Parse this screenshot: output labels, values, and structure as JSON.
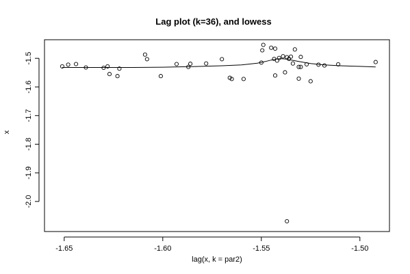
{
  "chart_data": {
    "type": "scatter",
    "title": "Lag plot (k=36), and lowess",
    "xlabel": "lag(x, k = par2)",
    "ylabel": "x",
    "xlim": [
      -1.66,
      -1.485
    ],
    "ylim": [
      -2.105,
      -1.435
    ],
    "xticks": [
      -1.65,
      -1.6,
      -1.55,
      -1.5
    ],
    "xtick_labels": [
      "-1.65",
      "-1.60",
      "-1.55",
      "-1.50"
    ],
    "yticks": [
      -2.0,
      -1.9,
      -1.8,
      -1.7,
      -1.6,
      -1.5
    ],
    "ytick_labels": [
      "-2.0",
      "-1.9",
      "-1.8",
      "-1.7",
      "-1.6",
      "-1.5"
    ],
    "grid": false,
    "marker": "open-circle",
    "points": [
      [
        -1.651,
        -1.528
      ],
      [
        -1.648,
        -1.522
      ],
      [
        -1.644,
        -1.52
      ],
      [
        -1.639,
        -1.532
      ],
      [
        -1.63,
        -1.533
      ],
      [
        -1.628,
        -1.528
      ],
      [
        -1.627,
        -1.555
      ],
      [
        -1.623,
        -1.562
      ],
      [
        -1.622,
        -1.536
      ],
      [
        -1.609,
        -1.487
      ],
      [
        -1.608,
        -1.503
      ],
      [
        -1.601,
        -1.562
      ],
      [
        -1.593,
        -1.52
      ],
      [
        -1.587,
        -1.53
      ],
      [
        -1.586,
        -1.519
      ],
      [
        -1.578,
        -1.518
      ],
      [
        -1.57,
        -1.503
      ],
      [
        -1.566,
        -1.568
      ],
      [
        -1.565,
        -1.572
      ],
      [
        -1.559,
        -1.572
      ],
      [
        -1.55,
        -1.515
      ],
      [
        -1.5495,
        -1.472
      ],
      [
        -1.549,
        -1.453
      ],
      [
        -1.545,
        -1.463
      ],
      [
        -1.5435,
        -1.502
      ],
      [
        -1.543,
        -1.56
      ],
      [
        -1.543,
        -1.466
      ],
      [
        -1.542,
        -1.508
      ],
      [
        -1.541,
        -1.499
      ],
      [
        -1.539,
        -1.493
      ],
      [
        -1.538,
        -1.549
      ],
      [
        -1.537,
        -1.496
      ],
      [
        -1.537,
        -2.069
      ],
      [
        -1.536,
        -1.502
      ],
      [
        -1.535,
        -1.494
      ],
      [
        -1.534,
        -1.518
      ],
      [
        -1.533,
        -1.469
      ],
      [
        -1.531,
        -1.53
      ],
      [
        -1.531,
        -1.571
      ],
      [
        -1.53,
        -1.495
      ],
      [
        -1.53,
        -1.53
      ],
      [
        -1.527,
        -1.521
      ],
      [
        -1.525,
        -1.58
      ],
      [
        -1.521,
        -1.522
      ],
      [
        -1.518,
        -1.525
      ],
      [
        -1.511,
        -1.521
      ],
      [
        -1.492,
        -1.513
      ]
    ],
    "lowess": {
      "x": [
        -1.651,
        -1.64,
        -1.628,
        -1.615,
        -1.6,
        -1.585,
        -1.57,
        -1.56,
        -1.552,
        -1.548,
        -1.545,
        -1.542,
        -1.54,
        -1.537,
        -1.534,
        -1.53,
        -1.525,
        -1.518,
        -1.51,
        -1.5,
        -1.492
      ],
      "y": [
        -1.532,
        -1.532,
        -1.532,
        -1.532,
        -1.531,
        -1.529,
        -1.526,
        -1.523,
        -1.517,
        -1.511,
        -1.506,
        -1.502,
        -1.501,
        -1.503,
        -1.507,
        -1.512,
        -1.518,
        -1.523,
        -1.526,
        -1.528,
        -1.53
      ]
    }
  }
}
